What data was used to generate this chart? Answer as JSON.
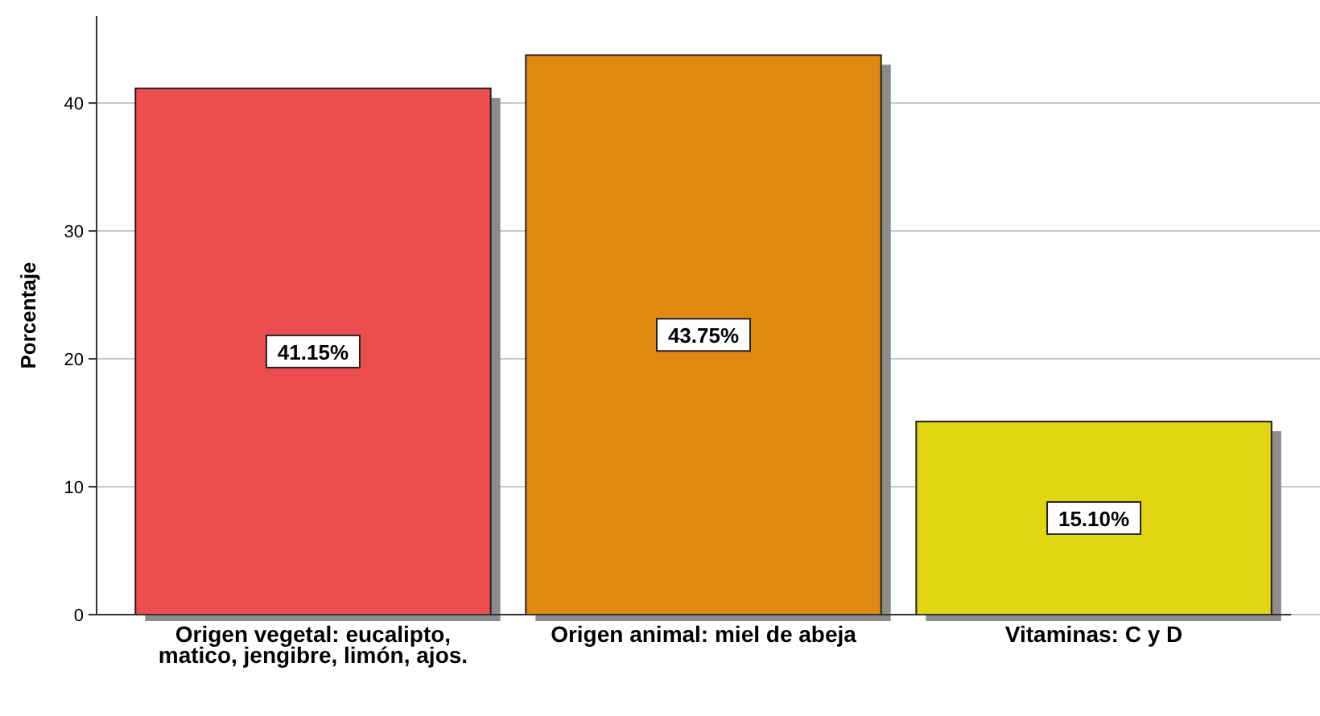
{
  "chart_data": {
    "type": "bar",
    "ylabel": "Porcentaje",
    "categories": [
      "Origen vegetal: eucalipto, matico, jengibre, limón, ajos.",
      "Origen animal: miel de abeja",
      "Vitaminas: C y D"
    ],
    "values": [
      41.15,
      43.75,
      15.1
    ],
    "colors": [
      "#ee4d4f",
      "#e08a12",
      "#e2d511"
    ],
    "value_labels": [
      "41.15%",
      "43.75%",
      "15.10%"
    ],
    "ylim": [
      0,
      46.8
    ],
    "yticks": [
      0,
      10,
      20,
      30,
      40
    ],
    "grid": "y"
  }
}
